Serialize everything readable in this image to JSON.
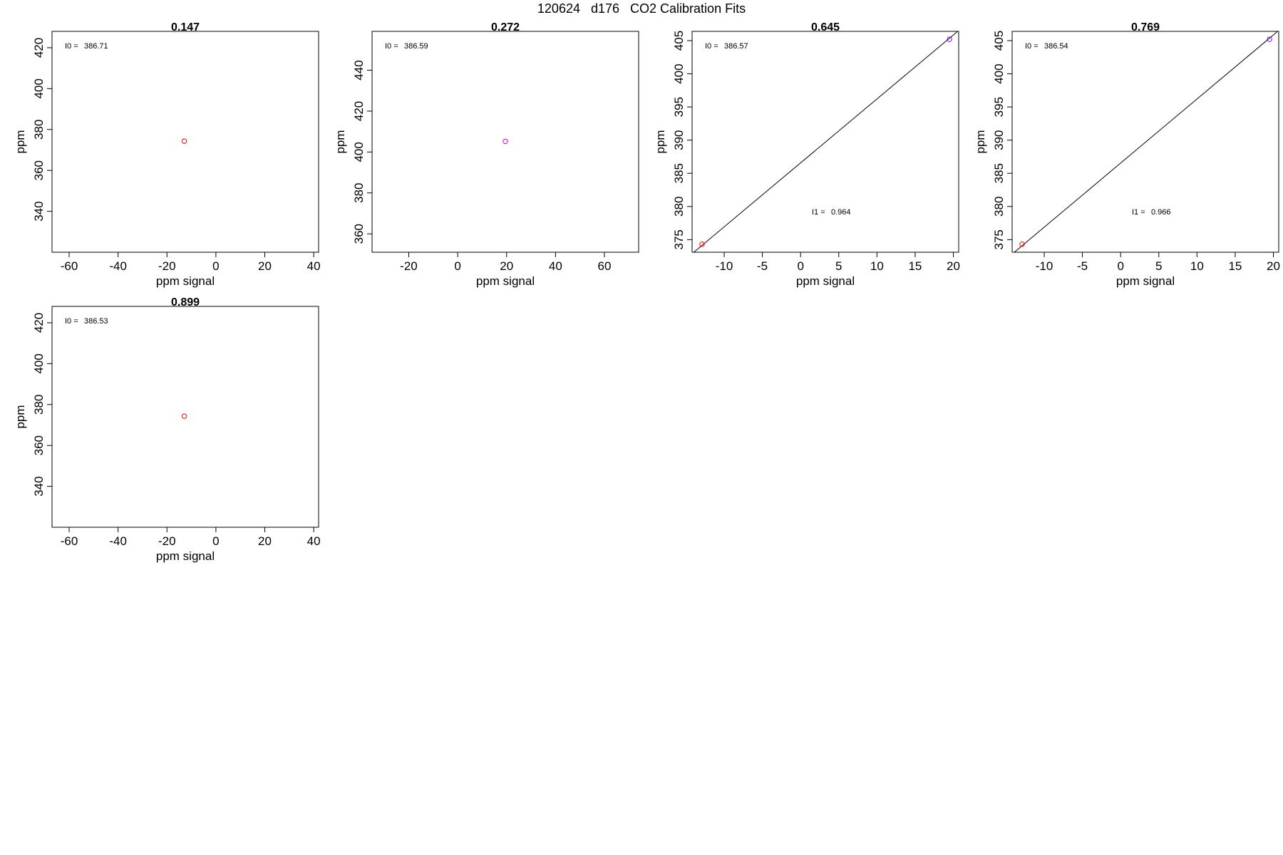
{
  "figure": {
    "title": "120624   d176   CO2 Calibration Fits"
  },
  "chart_data": [
    {
      "type": "scatter",
      "title": "0.147",
      "xlabel": "ppm signal",
      "ylabel": "ppm",
      "xlim": [
        -67,
        42
      ],
      "ylim": [
        320,
        428
      ],
      "xticks": [
        -60,
        -40,
        -20,
        0,
        20,
        40
      ],
      "yticks": [
        340,
        360,
        380,
        400,
        420
      ],
      "annotations": [
        {
          "label": "I0 =",
          "value": "386.71"
        }
      ],
      "points": [
        {
          "x": -12.9,
          "y": 374.3,
          "color": "#ff0000"
        }
      ],
      "fit_line": null
    },
    {
      "type": "scatter",
      "title": "0.272",
      "xlabel": "ppm signal",
      "ylabel": "ppm",
      "xlim": [
        -35,
        74
      ],
      "ylim": [
        351,
        459
      ],
      "xticks": [
        -20,
        0,
        20,
        40,
        60
      ],
      "yticks": [
        360,
        380,
        400,
        420,
        440
      ],
      "annotations": [
        {
          "label": "I0 =",
          "value": "386.59"
        }
      ],
      "points": [
        {
          "x": 19.5,
          "y": 405.2,
          "color": "#cc00cc"
        }
      ],
      "fit_line": null
    },
    {
      "type": "scatter",
      "title": "0.645",
      "xlabel": "ppm signal",
      "ylabel": "ppm",
      "xlim": [
        -14.2,
        20.7
      ],
      "ylim": [
        373.1,
        406.4
      ],
      "xticks": [
        -10,
        -5,
        0,
        5,
        10,
        15,
        20
      ],
      "yticks": [
        375,
        380,
        385,
        390,
        395,
        400,
        405
      ],
      "annotations": [
        {
          "label": "I0 =",
          "value": "386.57"
        },
        {
          "label": "I1 =",
          "value": "0.964"
        }
      ],
      "points": [
        {
          "x": -12.9,
          "y": 374.3,
          "color": "#ff0000"
        },
        {
          "x": 19.5,
          "y": 405.2,
          "color": "#8000ff"
        }
      ],
      "fit_line": {
        "intercept": 386.57,
        "slope": 0.964
      }
    },
    {
      "type": "scatter",
      "title": "0.769",
      "xlabel": "ppm signal",
      "ylabel": "ppm",
      "xlim": [
        -14.2,
        20.7
      ],
      "ylim": [
        373.1,
        406.4
      ],
      "xticks": [
        -10,
        -5,
        0,
        5,
        10,
        15,
        20
      ],
      "yticks": [
        375,
        380,
        385,
        390,
        395,
        400,
        405
      ],
      "annotations": [
        {
          "label": "I0 =",
          "value": "386.54"
        },
        {
          "label": "I1 =",
          "value": "0.966"
        }
      ],
      "points": [
        {
          "x": -12.9,
          "y": 374.3,
          "color": "#ff0000"
        },
        {
          "x": 19.5,
          "y": 405.2,
          "color": "#8000ff"
        }
      ],
      "fit_line": {
        "intercept": 386.54,
        "slope": 0.966
      }
    },
    {
      "type": "scatter",
      "title": "0.899",
      "xlabel": "ppm signal",
      "ylabel": "ppm",
      "xlim": [
        -67,
        42
      ],
      "ylim": [
        320,
        428
      ],
      "xticks": [
        -60,
        -40,
        -20,
        0,
        20,
        40
      ],
      "yticks": [
        340,
        360,
        380,
        400,
        420
      ],
      "annotations": [
        {
          "label": "I0 =",
          "value": "386.53"
        }
      ],
      "points": [
        {
          "x": -12.9,
          "y": 374.3,
          "color": "#ff0000"
        }
      ],
      "fit_line": null
    }
  ]
}
